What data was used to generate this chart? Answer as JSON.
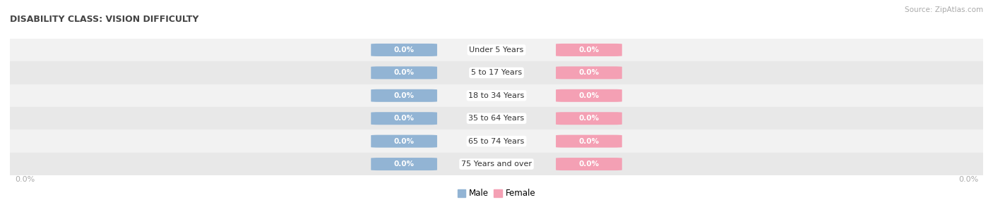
{
  "title": "DISABILITY CLASS: VISION DIFFICULTY",
  "source": "Source: ZipAtlas.com",
  "categories": [
    "Under 5 Years",
    "5 to 17 Years",
    "18 to 34 Years",
    "35 to 64 Years",
    "65 to 74 Years",
    "75 Years and over"
  ],
  "male_values": [
    0.0,
    0.0,
    0.0,
    0.0,
    0.0,
    0.0
  ],
  "female_values": [
    0.0,
    0.0,
    0.0,
    0.0,
    0.0,
    0.0
  ],
  "male_color": "#92b4d4",
  "female_color": "#f4a0b4",
  "row_bg_colors": [
    "#f2f2f2",
    "#e8e8e8"
  ],
  "title_color": "#444444",
  "label_color": "#333333",
  "value_color": "#ffffff",
  "axis_label_color": "#aaaaaa",
  "source_color": "#aaaaaa",
  "figsize": [
    14.06,
    3.04
  ],
  "dpi": 100
}
